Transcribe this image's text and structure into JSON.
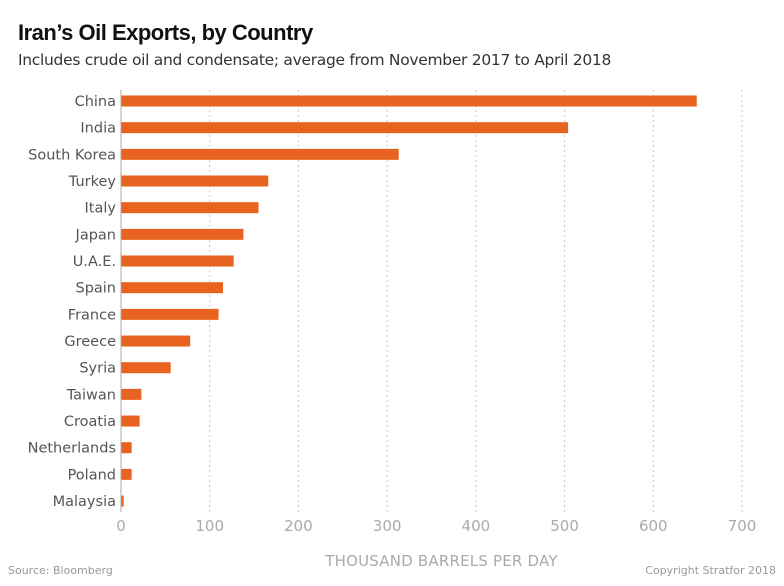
{
  "header": {
    "title": "Iran’s Oil Exports, by Country",
    "subtitle": "Includes crude oil and condensate; average from November 2017 to April 2018"
  },
  "footer": {
    "source": "Source: Bloomberg",
    "copyright": "Copyright Stratfor 2018"
  },
  "colors": {
    "bar": "#E8631F",
    "grid": "#c8c8c8",
    "axis": "#aaaaaa"
  },
  "chart_data": {
    "type": "bar",
    "orientation": "horizontal",
    "title": "Iran’s Oil Exports, by Country",
    "subtitle": "Includes crude oil and condensate; average from November 2017 to April 2018",
    "xlabel": "THOUSAND BARRELS PER DAY",
    "ylabel": "",
    "xlim": [
      0,
      700
    ],
    "xticks": [
      0,
      100,
      200,
      300,
      400,
      500,
      600,
      700
    ],
    "xtick_labels": [
      "0",
      "100",
      "200",
      "300",
      "400",
      "500",
      "600",
      "700"
    ],
    "grid": "vertical dotted",
    "categories": [
      "China",
      "India",
      "South Korea",
      "Turkey",
      "Italy",
      "Japan",
      "U.A.E.",
      "Spain",
      "France",
      "Greece",
      "Syria",
      "Taiwan",
      "Croatia",
      "Netherlands",
      "Poland",
      "Malaysia"
    ],
    "values": [
      649,
      504,
      313,
      166,
      155,
      138,
      127,
      115,
      110,
      78,
      56,
      23,
      21,
      12,
      12,
      3
    ]
  }
}
